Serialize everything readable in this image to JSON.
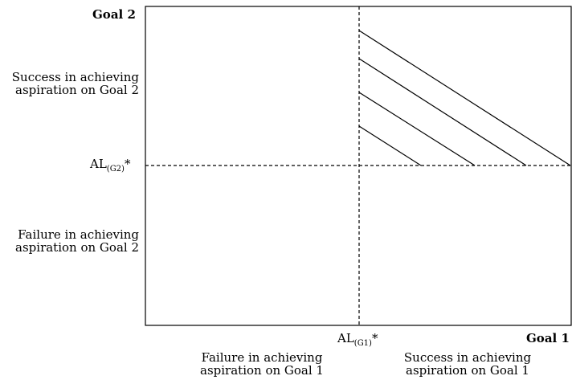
{
  "axis_labels": {
    "x": "Goal 1",
    "y": "Goal 2"
  },
  "thresholds": {
    "x": {
      "main": "AL",
      "sub": "(G1)",
      "star": "*"
    },
    "y": {
      "main": "AL",
      "sub": "(G2)",
      "star": "*"
    }
  },
  "region_labels": {
    "y_top": [
      "Success in achieving",
      "aspiration on Goal 2"
    ],
    "y_bottom": [
      "Failure in achieving",
      "aspiration on Goal 2"
    ],
    "x_left": [
      "Failure in achieving",
      "aspiration on Goal 1"
    ],
    "x_right": [
      "Success in achieving",
      "aspiration on Goal 1"
    ]
  },
  "hatch_line_count": 4
}
